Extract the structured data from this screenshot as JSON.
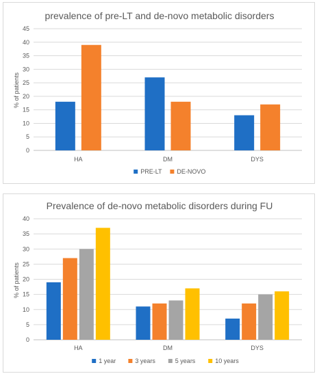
{
  "chart_data": [
    {
      "type": "bar",
      "title": "prevalence of pre-LT and de-novo metabolic disorders",
      "ylabel": "% of patients",
      "xlabel": "",
      "categories": [
        "HA",
        "DM",
        "DYS"
      ],
      "series": [
        {
          "name": "PRE-LT",
          "color": "#1f6fc5",
          "values": [
            18,
            27,
            13
          ]
        },
        {
          "name": "DE-NOVO",
          "color": "#f4812c",
          "values": [
            39,
            18,
            17
          ]
        }
      ],
      "ylim": [
        0,
        45
      ],
      "ytick_step": 5,
      "yticks": [
        "0",
        "5",
        "10",
        "15",
        "20",
        "25",
        "30",
        "35",
        "40",
        "45"
      ],
      "grid": true,
      "legend": "bottom"
    },
    {
      "type": "bar",
      "title": "Prevalence of de-novo metabolic disorders during FU",
      "ylabel": "% of patients",
      "xlabel": "",
      "categories": [
        "HA",
        "DM",
        "DYS"
      ],
      "series": [
        {
          "name": "1 year",
          "color": "#1f6fc5",
          "values": [
            19,
            11,
            7
          ]
        },
        {
          "name": "3 years",
          "color": "#f4812c",
          "values": [
            27,
            12,
            12
          ]
        },
        {
          "name": "5 years",
          "color": "#a5a5a5",
          "values": [
            30,
            13,
            15
          ]
        },
        {
          "name": "10 years",
          "color": "#ffc000",
          "values": [
            37,
            17,
            16
          ]
        }
      ],
      "ylim": [
        0,
        40
      ],
      "ytick_step": 5,
      "yticks": [
        "0",
        "5",
        "10",
        "15",
        "20",
        "25",
        "30",
        "35",
        "40"
      ],
      "grid": true,
      "legend": "bottom"
    }
  ]
}
